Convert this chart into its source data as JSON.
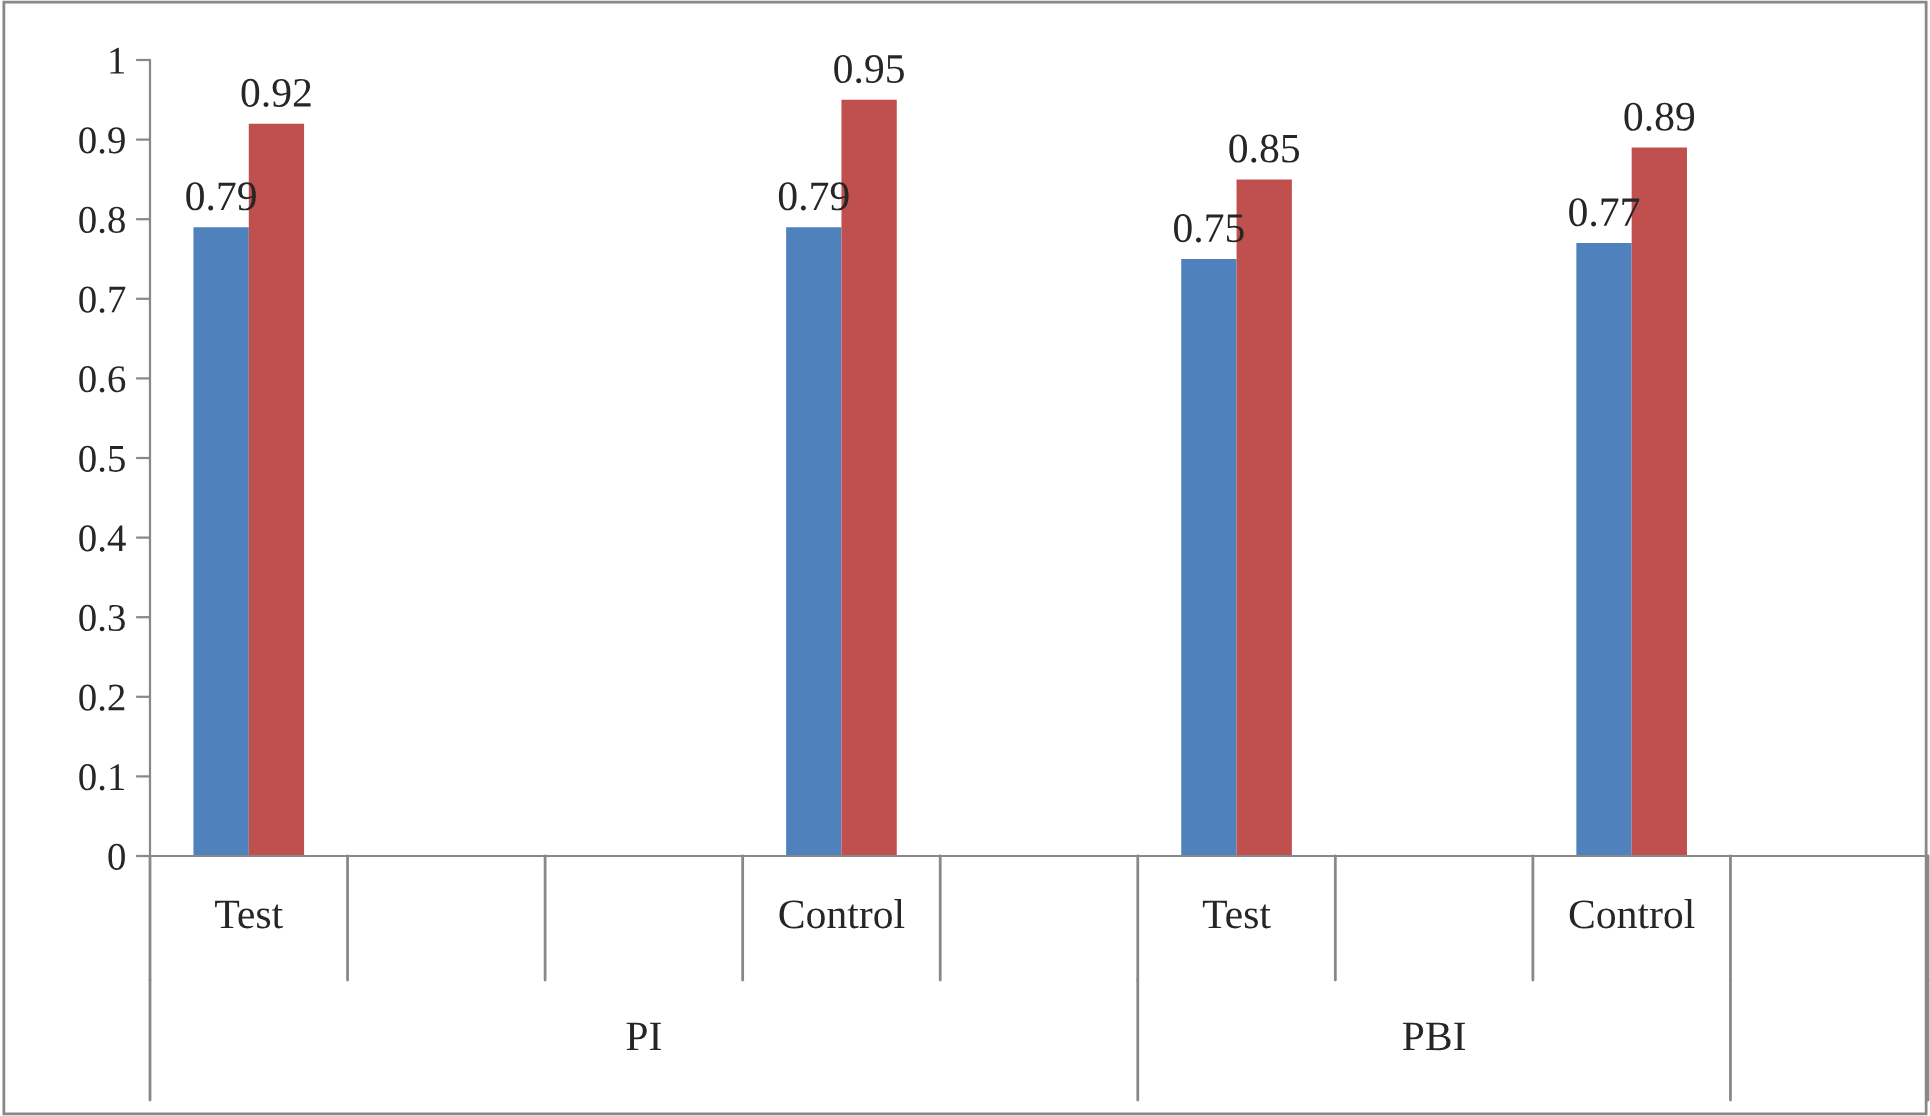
{
  "chart_data": {
    "type": "bar",
    "categories": [
      "Test",
      null,
      null,
      "Control",
      null,
      "Test",
      null,
      "Control",
      null
    ],
    "series": [
      {
        "color": "#4f81bd",
        "values": [
          0.79,
          null,
          null,
          0.79,
          null,
          0.75,
          null,
          0.77,
          null
        ]
      },
      {
        "color": "#c0504d",
        "values": [
          0.92,
          null,
          null,
          0.95,
          null,
          0.85,
          null,
          0.89,
          null
        ]
      }
    ],
    "annotations": [
      "PI",
      "PBI"
    ],
    "ylim": [
      0,
      1
    ],
    "yticks": [
      0,
      {
        "value": 0.1,
        "label": "0.1"
      },
      {
        "value": 0.2,
        "label": "0.2"
      },
      {
        "value": 0.3,
        "label": "0.3"
      },
      {
        "value": 0.4,
        "label": "0.4"
      },
      {
        "value": 0.5,
        "label": "0.5"
      },
      {
        "value": 0.6,
        "label": "0.6"
      },
      {
        "value": 0.7,
        "label": "0.7"
      },
      {
        "value": 0.8,
        "label": "0.8"
      },
      {
        "value": 0.9,
        "label": "0.9"
      },
      1
    ],
    "data_labels": true,
    "grid": false,
    "legend": false
  }
}
